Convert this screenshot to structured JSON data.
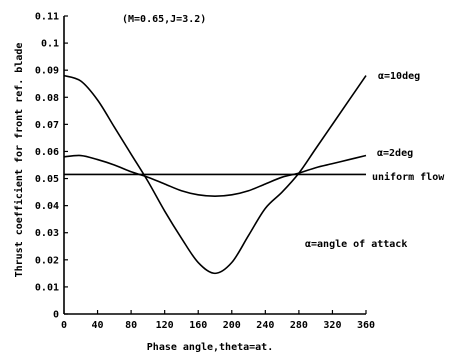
{
  "chart_data": {
    "type": "line",
    "title": "",
    "subtitle": "(M=0.65,J=3.2)",
    "xlabel": "Phase angle,theta=at.",
    "ylabel": "Thrust coefficient for front ref. blade",
    "xlim": [
      0,
      360
    ],
    "ylim": [
      0,
      0.11
    ],
    "xticks": [
      "0",
      "40",
      "80",
      "120",
      "160",
      "200",
      "240",
      "280",
      "320",
      "360"
    ],
    "yticks": [
      "0",
      "0.01",
      "0.02",
      "0.03",
      "0.04",
      "0.05",
      "0.06",
      "0.07",
      "0.08",
      "0.09",
      "0.1",
      "0.11"
    ],
    "grid": false,
    "annotation": "α=angle of attack",
    "series": [
      {
        "name": "α=10deg",
        "x": [
          0,
          20,
          40,
          60,
          80,
          100,
          120,
          140,
          160,
          180,
          200,
          220,
          240,
          260,
          280,
          300,
          320,
          340,
          360
        ],
        "y": [
          0.088,
          0.086,
          0.079,
          0.069,
          0.059,
          0.049,
          0.038,
          0.028,
          0.019,
          0.015,
          0.019,
          0.029,
          0.039,
          0.045,
          0.052,
          0.061,
          0.07,
          0.079,
          0.088
        ]
      },
      {
        "name": "α=2deg",
        "x": [
          0,
          20,
          40,
          60,
          80,
          100,
          120,
          140,
          160,
          180,
          200,
          220,
          240,
          260,
          280,
          300,
          320,
          340,
          360
        ],
        "y": [
          0.058,
          0.0585,
          0.057,
          0.055,
          0.0525,
          0.0505,
          0.048,
          0.0455,
          0.044,
          0.0435,
          0.044,
          0.0455,
          0.048,
          0.0505,
          0.052,
          0.054,
          0.0555,
          0.057,
          0.0585
        ]
      },
      {
        "name": "uniform flow",
        "x": [
          0,
          360
        ],
        "y": [
          0.0515,
          0.0515
        ]
      }
    ]
  }
}
